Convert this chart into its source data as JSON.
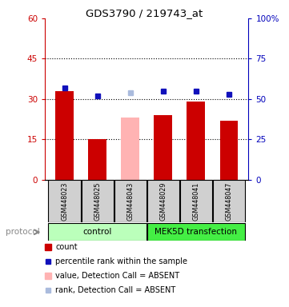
{
  "title": "GDS3790 / 219743_at",
  "samples": [
    "GSM448023",
    "GSM448025",
    "GSM448043",
    "GSM448029",
    "GSM448041",
    "GSM448047"
  ],
  "bar_values": [
    33,
    15,
    23,
    24,
    29,
    22
  ],
  "bar_colors": [
    "#cc0000",
    "#cc0000",
    "#ffb3b3",
    "#cc0000",
    "#cc0000",
    "#cc0000"
  ],
  "dot_values": [
    57,
    52,
    54,
    55,
    55,
    53
  ],
  "dot_colors": [
    "#1111bb",
    "#1111bb",
    "#aabbdd",
    "#1111bb",
    "#1111bb",
    "#1111bb"
  ],
  "ylim_left": [
    0,
    60
  ],
  "ylim_right": [
    0,
    100
  ],
  "yticks_left": [
    0,
    15,
    30,
    45,
    60
  ],
  "ytick_labels_left": [
    "0",
    "15",
    "30",
    "45",
    "60"
  ],
  "yticks_right": [
    0,
    25,
    50,
    75,
    100
  ],
  "ytick_labels_right": [
    "0",
    "25",
    "50",
    "75",
    "100%"
  ],
  "hlines": [
    15,
    30,
    45
  ],
  "groups": [
    {
      "label": "control",
      "indices": [
        0,
        1,
        2
      ],
      "color": "#bbffbb"
    },
    {
      "label": "MEK5D transfection",
      "indices": [
        3,
        4,
        5
      ],
      "color": "#44ee44"
    }
  ],
  "protocol_label": "protocol",
  "legend_items": [
    {
      "color": "#cc0000",
      "label": "count",
      "type": "square"
    },
    {
      "color": "#1111bb",
      "label": "percentile rank within the sample",
      "type": "dot"
    },
    {
      "color": "#ffb3b3",
      "label": "value, Detection Call = ABSENT",
      "type": "square"
    },
    {
      "color": "#aabbdd",
      "label": "rank, Detection Call = ABSENT",
      "type": "dot"
    }
  ],
  "bar_width": 0.55,
  "bg_color": "#ffffff",
  "axis_color_left": "#cc0000",
  "axis_color_right": "#0000bb"
}
